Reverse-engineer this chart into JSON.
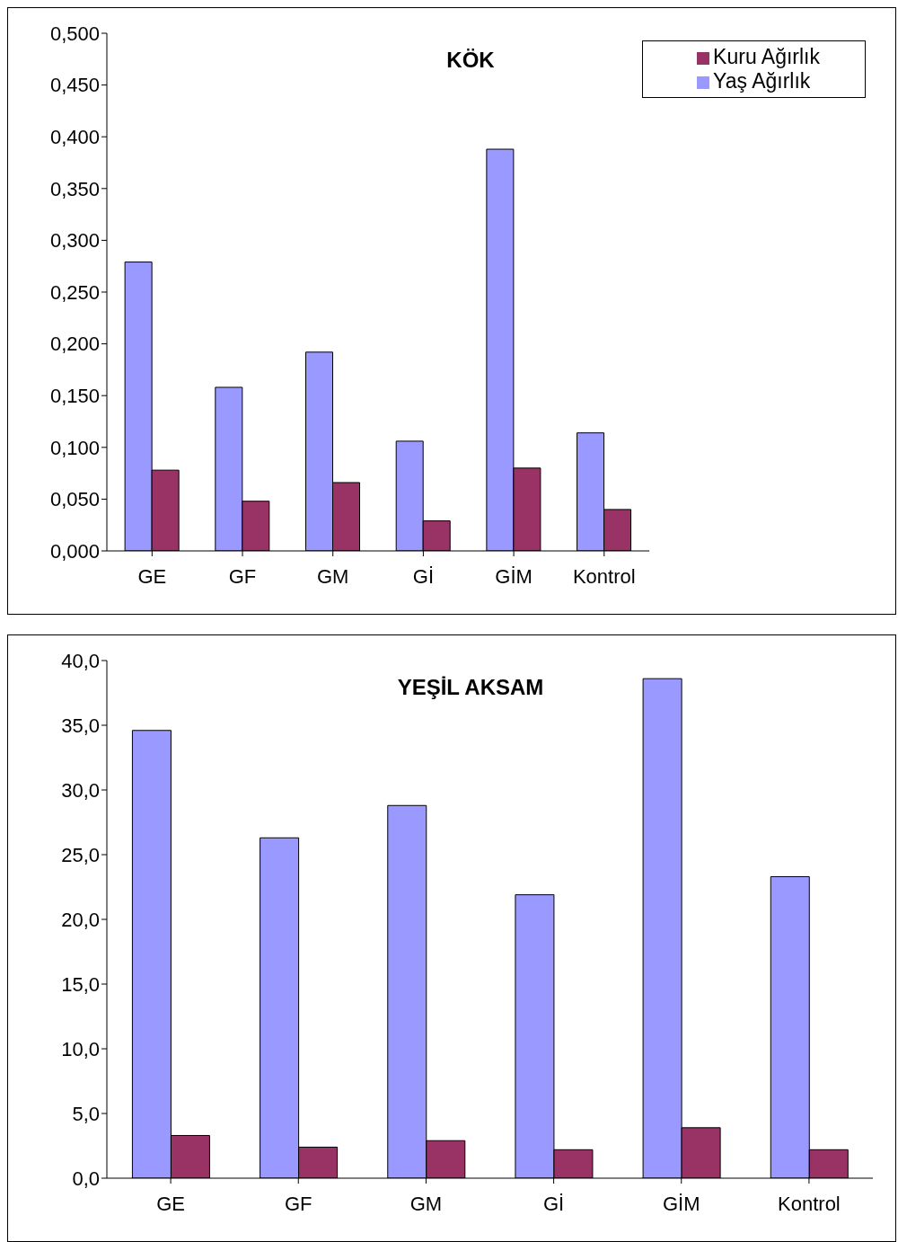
{
  "chart_data": [
    {
      "type": "bar",
      "title": "KÖK",
      "categories": [
        "GE",
        "GF",
        "GM",
        "Gİ",
        "GİM",
        "Kontrol"
      ],
      "series": [
        {
          "name": "Yaş Ağırlık",
          "color": "#9999ff",
          "values": [
            0.279,
            0.158,
            0.192,
            0.106,
            0.388,
            0.114
          ]
        },
        {
          "name": "Kuru Ağırlık",
          "color": "#993366",
          "values": [
            0.078,
            0.048,
            0.066,
            0.029,
            0.08,
            0.04
          ]
        }
      ],
      "ylim": [
        0,
        0.5
      ],
      "yticks": [
        {
          "value": 0,
          "label": "0,000"
        },
        {
          "value": 0.05,
          "label": "0,050"
        },
        {
          "value": 0.1,
          "label": "0,100"
        },
        {
          "value": 0.15,
          "label": "0,150"
        },
        {
          "value": 0.2,
          "label": "0,200"
        },
        {
          "value": 0.25,
          "label": "0,250"
        },
        {
          "value": 0.3,
          "label": "0,300"
        },
        {
          "value": 0.35,
          "label": "0,350"
        },
        {
          "value": 0.4,
          "label": "0,400"
        },
        {
          "value": 0.45,
          "label": "0,450"
        },
        {
          "value": 0.5,
          "label": "0,500"
        }
      ],
      "grid": false,
      "legend": "top right"
    },
    {
      "type": "bar",
      "title": "YEŞİL AKSAM",
      "categories": [
        "GE",
        "GF",
        "GM",
        "Gİ",
        "GİM",
        "Kontrol"
      ],
      "series": [
        {
          "color": "#9999ff",
          "values": [
            34.6,
            26.3,
            28.8,
            21.9,
            38.6,
            23.3
          ]
        },
        {
          "color": "#993366",
          "values": [
            3.3,
            2.4,
            2.9,
            2.2,
            3.9,
            2.2
          ]
        }
      ],
      "ylim": [
        0,
        40
      ],
      "yticks": [
        {
          "value": 0,
          "label": "0,0"
        },
        {
          "value": 5,
          "label": "5,0"
        },
        {
          "value": 10,
          "label": "10,0"
        },
        {
          "value": 15,
          "label": "15,0"
        },
        {
          "value": 20,
          "label": "20,0"
        },
        {
          "value": 25,
          "label": "25,0"
        },
        {
          "value": 30,
          "label": "30,0"
        },
        {
          "value": 35,
          "label": "35,0"
        },
        {
          "value": 40,
          "label": "40,0"
        }
      ],
      "grid": false,
      "legend": false
    }
  ]
}
